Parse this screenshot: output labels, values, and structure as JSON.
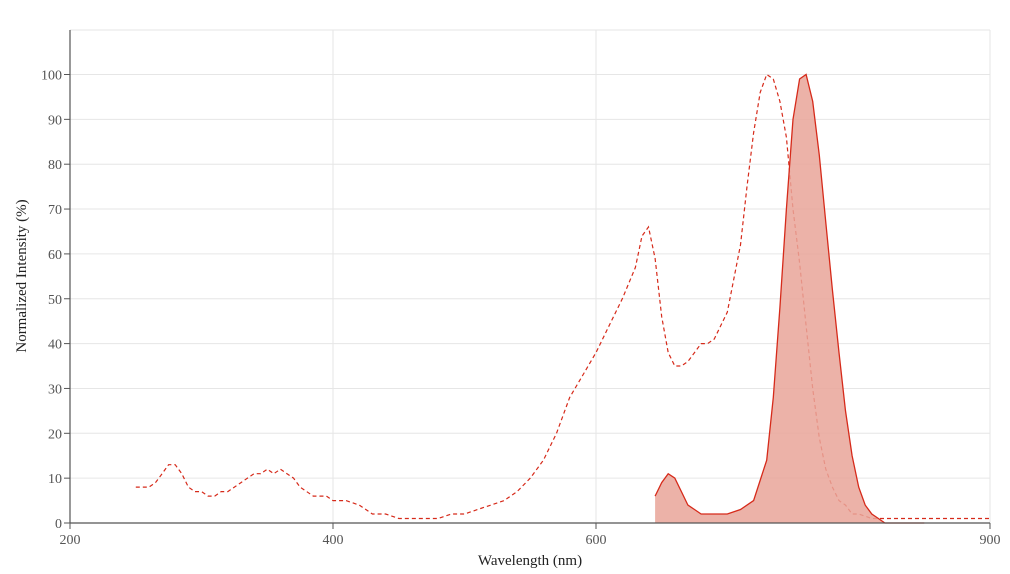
{
  "chart_data": {
    "type": "area",
    "title": "",
    "xlabel": "Wavelength (nm)",
    "ylabel": "Normalized Intensity (%)",
    "xlim": [
      200,
      900
    ],
    "ylim": [
      0,
      110
    ],
    "xticks": [
      200,
      400,
      600,
      900
    ],
    "yticks": [
      0,
      10,
      20,
      30,
      40,
      50,
      60,
      70,
      80,
      90,
      100
    ],
    "grid": true,
    "legend": "none",
    "colors": {
      "line": "#d62a1a",
      "fill": "#e9a499",
      "grid": "#e6e6e6",
      "axis": "#555555"
    },
    "series": [
      {
        "style": "dashed",
        "x": [
          250,
          260,
          265,
          270,
          275,
          280,
          285,
          290,
          295,
          300,
          305,
          310,
          315,
          320,
          325,
          330,
          335,
          340,
          345,
          350,
          355,
          360,
          365,
          370,
          375,
          380,
          385,
          390,
          395,
          400,
          410,
          420,
          430,
          440,
          450,
          460,
          470,
          480,
          490,
          500,
          510,
          520,
          530,
          540,
          550,
          560,
          570,
          580,
          590,
          600,
          610,
          620,
          630,
          635,
          640,
          645,
          650,
          655,
          660,
          665,
          670,
          675,
          680,
          685,
          690,
          700,
          710,
          715,
          720,
          725,
          730,
          735,
          740,
          745,
          750,
          755,
          760,
          765,
          770,
          775,
          780,
          785,
          790,
          795,
          800,
          810,
          820,
          830,
          840,
          850,
          900
        ],
        "y": [
          8,
          8,
          9,
          11,
          13,
          13,
          11,
          8,
          7,
          7,
          6,
          6,
          7,
          7,
          8,
          9,
          10,
          11,
          11,
          12,
          11,
          12,
          11,
          10,
          8,
          7,
          6,
          6,
          6,
          5,
          5,
          4,
          2,
          2,
          1,
          1,
          1,
          1,
          2,
          2,
          3,
          4,
          5,
          7,
          10,
          14,
          20,
          28,
          33,
          38,
          44,
          50,
          57,
          64,
          66,
          59,
          46,
          38,
          35,
          35,
          36,
          38,
          40,
          40,
          41,
          47,
          62,
          75,
          87,
          96,
          100,
          99,
          94,
          86,
          70,
          58,
          44,
          30,
          19,
          12,
          8,
          5,
          4,
          2,
          2,
          1,
          1,
          1,
          1,
          1,
          1
        ]
      },
      {
        "style": "filled",
        "x": [
          645,
          650,
          655,
          660,
          665,
          670,
          675,
          680,
          685,
          690,
          700,
          710,
          720,
          730,
          735,
          740,
          745,
          750,
          755,
          760,
          765,
          770,
          775,
          780,
          785,
          790,
          795,
          800,
          805,
          810,
          815,
          820,
          825,
          830,
          835,
          840,
          845,
          850
        ],
        "y": [
          6,
          9,
          11,
          10,
          7,
          4,
          3,
          2,
          2,
          2,
          2,
          3,
          5,
          14,
          28,
          48,
          70,
          90,
          99,
          100,
          94,
          82,
          67,
          52,
          38,
          25,
          15,
          8,
          4,
          2,
          1,
          0,
          0,
          0,
          0,
          0,
          0,
          0
        ]
      }
    ]
  }
}
